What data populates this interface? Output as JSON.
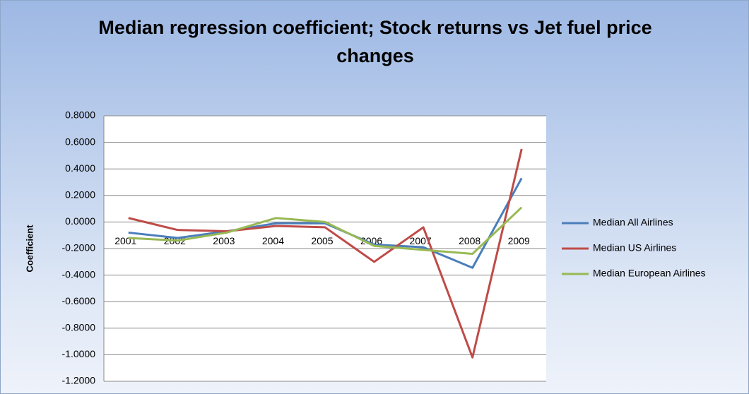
{
  "chart_data": {
    "type": "line",
    "title": "Median regression coefficient; Stock returns vs Jet fuel price changes",
    "y_label": "Coefficient",
    "categories": [
      "2001",
      "2002",
      "2003",
      "2004",
      "2005",
      "2006",
      "2007",
      "2008",
      "2009"
    ],
    "series": [
      {
        "name": "Median All Airlines",
        "color": "#4a7ebb",
        "values": [
          -0.08,
          -0.12,
          -0.07,
          -0.01,
          -0.01,
          -0.17,
          -0.19,
          -0.345,
          0.33
        ]
      },
      {
        "name": "Median US Airlines",
        "color": "#be4b48",
        "values": [
          0.03,
          -0.06,
          -0.07,
          -0.03,
          -0.04,
          -0.3,
          -0.04,
          -1.02,
          0.55
        ]
      },
      {
        "name": "Median European Airlines",
        "color": "#98b954",
        "values": [
          -0.12,
          -0.14,
          -0.08,
          0.03,
          0.0,
          -0.18,
          -0.21,
          -0.24,
          0.11
        ]
      }
    ],
    "ylim": [
      -1.2,
      0.8
    ],
    "yticks": [
      {
        "value": -1.2,
        "label": "-1.2000"
      },
      {
        "value": -1.0,
        "label": "-1.0000"
      },
      {
        "value": -0.8,
        "label": "-0.8000"
      },
      {
        "value": -0.6,
        "label": "-0.6000"
      },
      {
        "value": -0.4,
        "label": "-0.4000"
      },
      {
        "value": -0.2,
        "label": "-0.2000"
      },
      {
        "value": 0,
        "label": "0.0000"
      },
      {
        "value": 0.2,
        "label": "0.2000"
      },
      {
        "value": 0.4,
        "label": "0.4000"
      },
      {
        "value": 0.6,
        "label": "0.6000"
      },
      {
        "value": 0.8,
        "label": "0.8000"
      }
    ],
    "grid": true,
    "legend": "right"
  }
}
